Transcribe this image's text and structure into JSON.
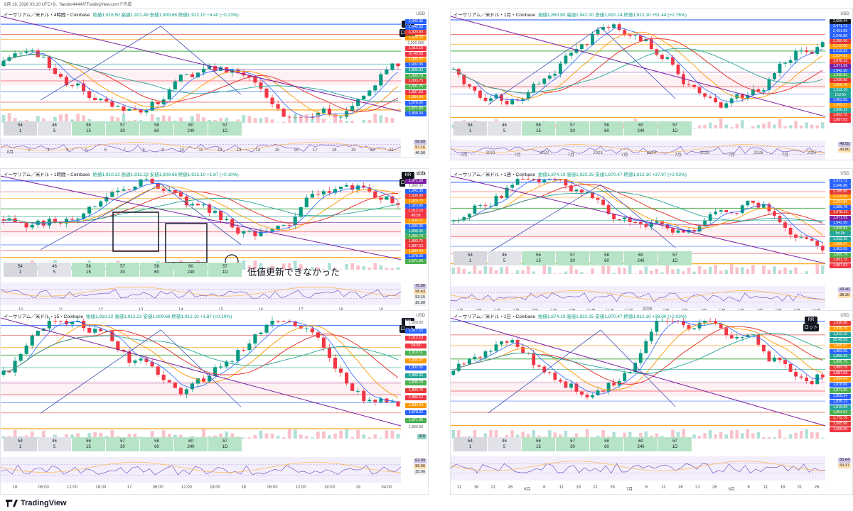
{
  "header": {
    "timestamp": "8月 19, 2026 03:10 UTC+9、flandre4444がTradingView.comで作成"
  },
  "footer": {
    "brand": "TradingView"
  },
  "colors": {
    "up": "#089981",
    "down": "#f23645",
    "purple": "#7b1fa2",
    "blue": "#2962ff",
    "orange": "#ff9800",
    "green": "#4caf50",
    "red": "#e53935"
  },
  "panels": [
    {
      "id": "p4h",
      "title": "イーサリアム／米ドル・4時間・Coinbase",
      "ohlc": "始値1,916.50 高値1,921.49 安値1,909.66 終値1,912.10 −4.40 (−0.23%)",
      "currency": "USD",
      "rr": "RR",
      "lot": "ロット",
      "price_labels": [
        {
          "text": "1,942.30",
          "color": "#2962ff"
        },
        {
          "text": "1,942.00",
          "color": "#2962ff"
        },
        {
          "text": "1,930.60",
          "color": "#e53935"
        },
        {
          "text": "1,926.70",
          "color": "#ff9800"
        },
        {
          "text": "1,920.000",
          "color": "#ffffff"
        },
        {
          "text": "1,912.10",
          "color": "#f23645"
        },
        {
          "text": "01:49:58",
          "color": "#f23645"
        },
        {
          "text": "1,905.37",
          "color": "#ff9800"
        },
        {
          "text": "1,902.05",
          "color": "#2962ff"
        },
        {
          "text": "1,896.32",
          "color": "#26a69a"
        },
        {
          "text": "1,895.79",
          "color": "#4caf50"
        },
        {
          "text": "1,893.75",
          "color": "#e53935"
        },
        {
          "text": "1,891.75",
          "color": "#4caf50"
        },
        {
          "text": "1,887.63",
          "color": "#f23645"
        },
        {
          "text": "1,884.04",
          "color": "#ff9800"
        },
        {
          "text": "1,878.00",
          "color": "#2962ff"
        },
        {
          "text": "1,871.90",
          "color": "#4caf50"
        },
        {
          "text": "1,858.34",
          "color": "#2962ff"
        }
      ],
      "rsi": [
        "59.69",
        "57.16",
        "40.00"
      ],
      "timeframes": [
        {
          "top": "54",
          "bottom": "1"
        },
        {
          "top": "46",
          "bottom": "5"
        },
        {
          "top": "56",
          "bottom": "15"
        },
        {
          "top": "57",
          "bottom": "30"
        },
        {
          "top": "58",
          "bottom": "60"
        },
        {
          "top": "60",
          "bottom": "240"
        },
        {
          "top": "57",
          "bottom": "1D"
        }
      ],
      "xaxis": [
        "8月",
        "2",
        "3",
        "4",
        "5",
        "6",
        "7",
        "8",
        "9",
        "10",
        "11",
        "12",
        "13",
        "14",
        "15",
        "16",
        "17",
        "18",
        "19",
        "20",
        "21"
      ]
    },
    {
      "id": "p1m",
      "title": "イーサリアム／米ドル・1月・Coinbase",
      "ohlc": "始値1,860.80 高値1,942.00 安値1,820.14 終値1,912.10 +51.44 (+2.76%)",
      "currency": "USD",
      "price_labels": [
        {
          "text": "2,656.44",
          "color": "#131722"
        },
        {
          "text": "2,471.71",
          "color": "#2962ff"
        },
        {
          "text": "2,451.65",
          "color": "#2962ff"
        },
        {
          "text": "2,346.86",
          "color": "#2962ff"
        },
        {
          "text": "2,285.50",
          "color": "#e53935"
        },
        {
          "text": "2,219.06",
          "color": "#ff9800"
        },
        {
          "text": "2,215.82",
          "color": "#2962ff"
        },
        {
          "text": "2,024.82",
          "color": "#ff9800"
        },
        {
          "text": "1,978.13",
          "color": "#e53935"
        },
        {
          "text": "1,971.59",
          "color": "#7b1fa2"
        },
        {
          "text": "1,942.30",
          "color": "#2962ff"
        },
        {
          "text": "1,935.81",
          "color": "#4caf50"
        },
        {
          "text": "1,930.60",
          "color": "#e53935"
        },
        {
          "text": "1,926.70",
          "color": "#ff9800"
        },
        {
          "text": "1,912.10",
          "color": "#26a69a"
        },
        {
          "text": "13d 6h",
          "color": "#26a69a"
        },
        {
          "text": "1,902.05",
          "color": "#2962ff"
        },
        {
          "text": "1,905.37",
          "color": "#ff9800"
        },
        {
          "text": "1,896.32",
          "color": "#26a69a"
        },
        {
          "text": "1,893.75",
          "color": "#e53935"
        },
        {
          "text": "1,887.63",
          "color": "#f23645"
        }
      ],
      "rsi": [
        "49.55",
        "43.80"
      ],
      "timeframes": [
        {
          "top": "54",
          "bottom": "1"
        },
        {
          "top": "46",
          "bottom": "5"
        },
        {
          "top": "56",
          "bottom": "15"
        },
        {
          "top": "57",
          "bottom": "30"
        },
        {
          "top": "58",
          "bottom": "60"
        },
        {
          "top": "60",
          "bottom": "240"
        },
        {
          "top": "57",
          "bottom": "1D"
        }
      ],
      "xaxis": [
        "7月",
        "2021",
        "7月",
        "2022",
        "7月",
        "2023",
        "7月",
        "2024",
        "7月",
        "2025",
        "7月",
        "2026",
        "7月",
        "2027"
      ]
    },
    {
      "id": "p1h",
      "title": "イーサリアム／米ドル・1時間・Coinbase",
      "ohlc": "始値1,910.22 高値1,912.23 安値1,909.66 終値1,912.10 +1.87 (+0.10%)",
      "currency": "USD",
      "rr": "RR",
      "lot": "ロット",
      "rr_value": "0.78",
      "lot_value": "0.00",
      "annotation": "低値更新できなかった",
      "price_labels": [
        {
          "text": "1,971.59",
          "color": "#7b1fa2"
        },
        {
          "text": "1,960.00",
          "color": "#ffffff"
        },
        {
          "text": "1,942.30",
          "color": "#2962ff"
        },
        {
          "text": "1,930.60",
          "color": "#e53935"
        },
        {
          "text": "1,926.70",
          "color": "#ff9800"
        },
        {
          "text": "1,923.80",
          "color": "#2962ff"
        },
        {
          "text": "1,912.10",
          "color": "#f23645"
        },
        {
          "text": "49:58",
          "color": "#f23645"
        },
        {
          "text": "1,905.37",
          "color": "#ff9800"
        },
        {
          "text": "1,902.05",
          "color": "#2962ff"
        },
        {
          "text": "1,896.32",
          "color": "#26a69a"
        },
        {
          "text": "1,895.79",
          "color": "#4caf50"
        },
        {
          "text": "1,893.75",
          "color": "#e53935"
        },
        {
          "text": "1,887.63",
          "color": "#f23645"
        },
        {
          "text": "1,884.04",
          "color": "#ff9800"
        },
        {
          "text": "1,878.00",
          "color": "#2962ff"
        },
        {
          "text": "1,871.90",
          "color": "#4caf50"
        }
      ],
      "rsi": [
        "75.00",
        "58.43",
        "53.15",
        "35.00"
      ],
      "timeframes": [
        {
          "top": "54",
          "bottom": "1"
        },
        {
          "top": "46",
          "bottom": "5"
        },
        {
          "top": "56",
          "bottom": "15"
        },
        {
          "top": "57",
          "bottom": "30"
        },
        {
          "top": "58",
          "bottom": "60"
        },
        {
          "top": "60",
          "bottom": "240"
        },
        {
          "top": "57",
          "bottom": "1D"
        }
      ],
      "xaxis": [
        "10",
        "11",
        "12",
        "13",
        "14",
        "15",
        "16",
        "17",
        "18",
        "19"
      ]
    },
    {
      "id": "p1w",
      "title": "イーサリアム／米ドル・1週・Coinbase",
      "ohlc": "始値1,874.10 高値1,922.25 安値1,870.47 終値1,912.10 +37.97 (+2.03%)",
      "currency": "USD",
      "price_labels": [
        {
          "text": "2,471.71",
          "color": "#2962ff"
        },
        {
          "text": "2,346.86",
          "color": "#2962ff"
        },
        {
          "text": "2,285.50",
          "color": "#e53935"
        },
        {
          "text": "2,219.06",
          "color": "#ff9800"
        },
        {
          "text": "2,024.82",
          "color": "#ff9800"
        },
        {
          "text": "1,986.79",
          "color": "#2962ff"
        },
        {
          "text": "1,978.13",
          "color": "#e53935"
        },
        {
          "text": "1,971.59",
          "color": "#7b1fa2"
        },
        {
          "text": "1,942.30",
          "color": "#2962ff"
        },
        {
          "text": "1,935.81",
          "color": "#4caf50"
        },
        {
          "text": "5d 6h",
          "color": "#26a69a"
        },
        {
          "text": "1,912.10",
          "color": "#26a69a"
        },
        {
          "text": "1,905.37",
          "color": "#ff9800"
        },
        {
          "text": "1,902.05",
          "color": "#2962ff"
        },
        {
          "text": "1,895.79",
          "color": "#4caf50"
        },
        {
          "text": "1,891.75",
          "color": "#e53935"
        },
        {
          "text": "1,887.63",
          "color": "#f23645"
        }
      ],
      "rsi": [
        "43.46",
        "38.30"
      ],
      "timeframes": [
        {
          "top": "54",
          "bottom": "1"
        },
        {
          "top": "46",
          "bottom": "5"
        },
        {
          "top": "56",
          "bottom": "15"
        },
        {
          "top": "57",
          "bottom": "30"
        },
        {
          "top": "58",
          "bottom": "60"
        },
        {
          "top": "60",
          "bottom": "240"
        },
        {
          "top": "57",
          "bottom": "1D"
        }
      ],
      "xaxis": [
        "3月",
        "4月",
        "5月",
        "6月",
        "7月",
        "8月",
        "9月",
        "10月",
        "11月",
        "12月",
        "2026",
        "2月",
        "3月",
        "4月",
        "5月",
        "6月",
        "7月",
        "8月",
        "9月",
        "10月"
      ]
    },
    {
      "id": "p15",
      "title": "イーサリアム／米ドル・15・Coinbase",
      "ohlc": "始値1,910.22 高値1,912.23 安値1,909.66 終値1,912.10 +1.87 (+0.10%)",
      "currency": "USD",
      "rr": "RR",
      "lot": "ロット",
      "price_labels": [
        {
          "text": "1,920.00",
          "color": "#ffffff"
        },
        {
          "text": "1,917.15",
          "color": "#2962ff"
        },
        {
          "text": "1,912.10",
          "color": "#f23645"
        },
        {
          "text": "04:58",
          "color": "#f23645"
        },
        {
          "text": "1,910.11",
          "color": "#4caf50"
        },
        {
          "text": "1,905.37",
          "color": "#ff9800"
        },
        {
          "text": "1,902.05",
          "color": "#2962ff"
        },
        {
          "text": "1,896.32",
          "color": "#26a69a"
        },
        {
          "text": "1,895.79",
          "color": "#4caf50"
        },
        {
          "text": "1,893.75",
          "color": "#e53935"
        },
        {
          "text": "1,884.12",
          "color": "#f23645"
        },
        {
          "text": "1,884.04",
          "color": "#ff9800"
        },
        {
          "text": "1,878.02",
          "color": "#2962ff"
        },
        {
          "text": "1,871.90",
          "color": "#4caf50"
        },
        {
          "text": "1,866.50",
          "color": "#ffffff"
        }
      ],
      "volume": "319",
      "rsi": [
        "62.99",
        "55.66",
        "35.00"
      ],
      "timeframes": [
        {
          "top": "54",
          "bottom": "1"
        },
        {
          "top": "46",
          "bottom": "5"
        },
        {
          "top": "56",
          "bottom": "15"
        },
        {
          "top": "57",
          "bottom": "30"
        },
        {
          "top": "58",
          "bottom": "60"
        },
        {
          "top": "60",
          "bottom": "240"
        },
        {
          "top": "57",
          "bottom": "1D"
        }
      ],
      "xaxis": [
        "16",
        "06:00",
        "12:00",
        "18:00",
        "17",
        "06:00",
        "12:00",
        "18:00",
        "18",
        "06:00",
        "12:00",
        "18:00",
        "19",
        "04:00"
      ]
    },
    {
      "id": "p1d",
      "title": "イーサリアム／米ドル・1日・Coinbase",
      "ohlc": "始値1,874.10 高値1,922.25 安値1,870.47 終値1,912.10 +38.00 (+2.03%)",
      "currency": "USD",
      "rr": "RR",
      "lot": "ロット",
      "price_labels": [
        {
          "text": "1,930.60",
          "color": "#e53935"
        },
        {
          "text": "1,926.70",
          "color": "#ff9800"
        },
        {
          "text": "1,912.10",
          "color": "#26a69a"
        },
        {
          "text": "05:49:58",
          "color": "#26a69a"
        },
        {
          "text": "1,905.37",
          "color": "#ff9800"
        },
        {
          "text": "1,902.05",
          "color": "#2962ff"
        },
        {
          "text": "1,896.32",
          "color": "#26a69a"
        },
        {
          "text": "1,895.79",
          "color": "#4caf50"
        },
        {
          "text": "1,893.75",
          "color": "#e53935"
        },
        {
          "text": "1,887.63",
          "color": "#f23645"
        },
        {
          "text": "1,884.04",
          "color": "#ff9800"
        },
        {
          "text": "1,878.00",
          "color": "#2962ff"
        },
        {
          "text": "1,871.90",
          "color": "#4caf50"
        },
        {
          "text": "1,858.34",
          "color": "#2962ff"
        },
        {
          "text": "1,836.12",
          "color": "#2962ff"
        },
        {
          "text": "1,819.09",
          "color": "#26a69a"
        },
        {
          "text": "1,804.51",
          "color": "#4caf50"
        },
        {
          "text": "1,772.70",
          "color": "#e53935"
        },
        {
          "text": "1,565.96",
          "color": "#e53935"
        },
        {
          "text": "1,505.00",
          "color": "#f23645"
        }
      ],
      "rsi": [
        "56.64",
        "53.37"
      ],
      "timeframes": [
        {
          "top": "54",
          "bottom": "1"
        },
        {
          "top": "46",
          "bottom": "5"
        },
        {
          "top": "56",
          "bottom": "15"
        },
        {
          "top": "57",
          "bottom": "30"
        },
        {
          "top": "58",
          "bottom": "60"
        },
        {
          "top": "60",
          "bottom": "240"
        },
        {
          "top": "57",
          "bottom": "1D"
        }
      ],
      "xaxis": [
        "11",
        "16",
        "21",
        "26",
        "6月",
        "6",
        "11",
        "16",
        "21",
        "26",
        "7月",
        "6",
        "11",
        "16",
        "21",
        "26",
        "8月",
        "6",
        "11",
        "16",
        "21",
        "26"
      ]
    }
  ]
}
